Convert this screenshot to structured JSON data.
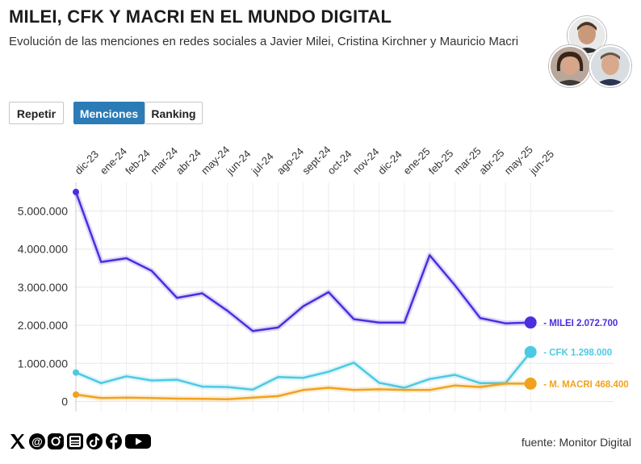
{
  "header": {
    "title": "MILEI, CFK Y MACRI EN EL MUNDO DIGITAL",
    "subtitle": "Evolución de las menciones en redes sociales a Javier Milei, Cristina Kirchner y Mauricio Macri"
  },
  "controls": {
    "replay_label": "Repetir",
    "tab_mentions_label": "Menciones",
    "tab_ranking_label": "Ranking",
    "active_tab": "Menciones"
  },
  "portraits": [
    "Javier Milei",
    "Cristina Kirchner",
    "Mauricio Macri"
  ],
  "chart_data": {
    "type": "line",
    "title": "MILEI, CFK Y MACRI EN EL MUNDO DIGITAL",
    "xlabel": "",
    "ylabel": "",
    "categories": [
      "dic-23",
      "ene-24",
      "feb-24",
      "mar-24",
      "abr-24",
      "may-24",
      "jun-24",
      "jul-24",
      "ago-24",
      "sept-24",
      "oct-24",
      "nov-24",
      "dic-24",
      "ene-25",
      "feb-25",
      "mar-25",
      "abr-25",
      "may-25",
      "jun-25"
    ],
    "ylim": [
      0,
      5500000
    ],
    "yticks": [
      0,
      1000000,
      2000000,
      3000000,
      4000000,
      5000000
    ],
    "ytick_labels": [
      "0",
      "1.000.000",
      "2.000.000",
      "3.000.000",
      "4.000.000",
      "5.000.000"
    ],
    "grid": true,
    "series": [
      {
        "name": "MILEI",
        "end_label": "- MILEI 2.072.700",
        "color": "#4a2ee0",
        "values": [
          5500000,
          3660000,
          3760000,
          3430000,
          2720000,
          2840000,
          2380000,
          1850000,
          1940000,
          2500000,
          2870000,
          2160000,
          2070000,
          2070000,
          3840000,
          3050000,
          2190000,
          2050000,
          2072700
        ]
      },
      {
        "name": "CFK",
        "end_label": "- CFK 1.298.000",
        "color": "#4ec9e3",
        "values": [
          760000,
          480000,
          660000,
          550000,
          570000,
          390000,
          380000,
          310000,
          640000,
          620000,
          780000,
          1020000,
          490000,
          360000,
          590000,
          700000,
          480000,
          480000,
          1298000
        ]
      },
      {
        "name": "M. MACRI",
        "end_label": "- M. MACRI 468.400",
        "color": "#f0a21e",
        "values": [
          180000,
          90000,
          100000,
          90000,
          75000,
          70000,
          60000,
          100000,
          140000,
          300000,
          360000,
          300000,
          320000,
          300000,
          300000,
          420000,
          380000,
          470000,
          468400
        ]
      }
    ]
  },
  "footer": {
    "social_icons": [
      "x-icon",
      "threads-icon",
      "instagram-icon",
      "news-icon",
      "tiktok-icon",
      "facebook-icon",
      "youtube-icon"
    ],
    "source": "fuente: Monitor Digital"
  }
}
